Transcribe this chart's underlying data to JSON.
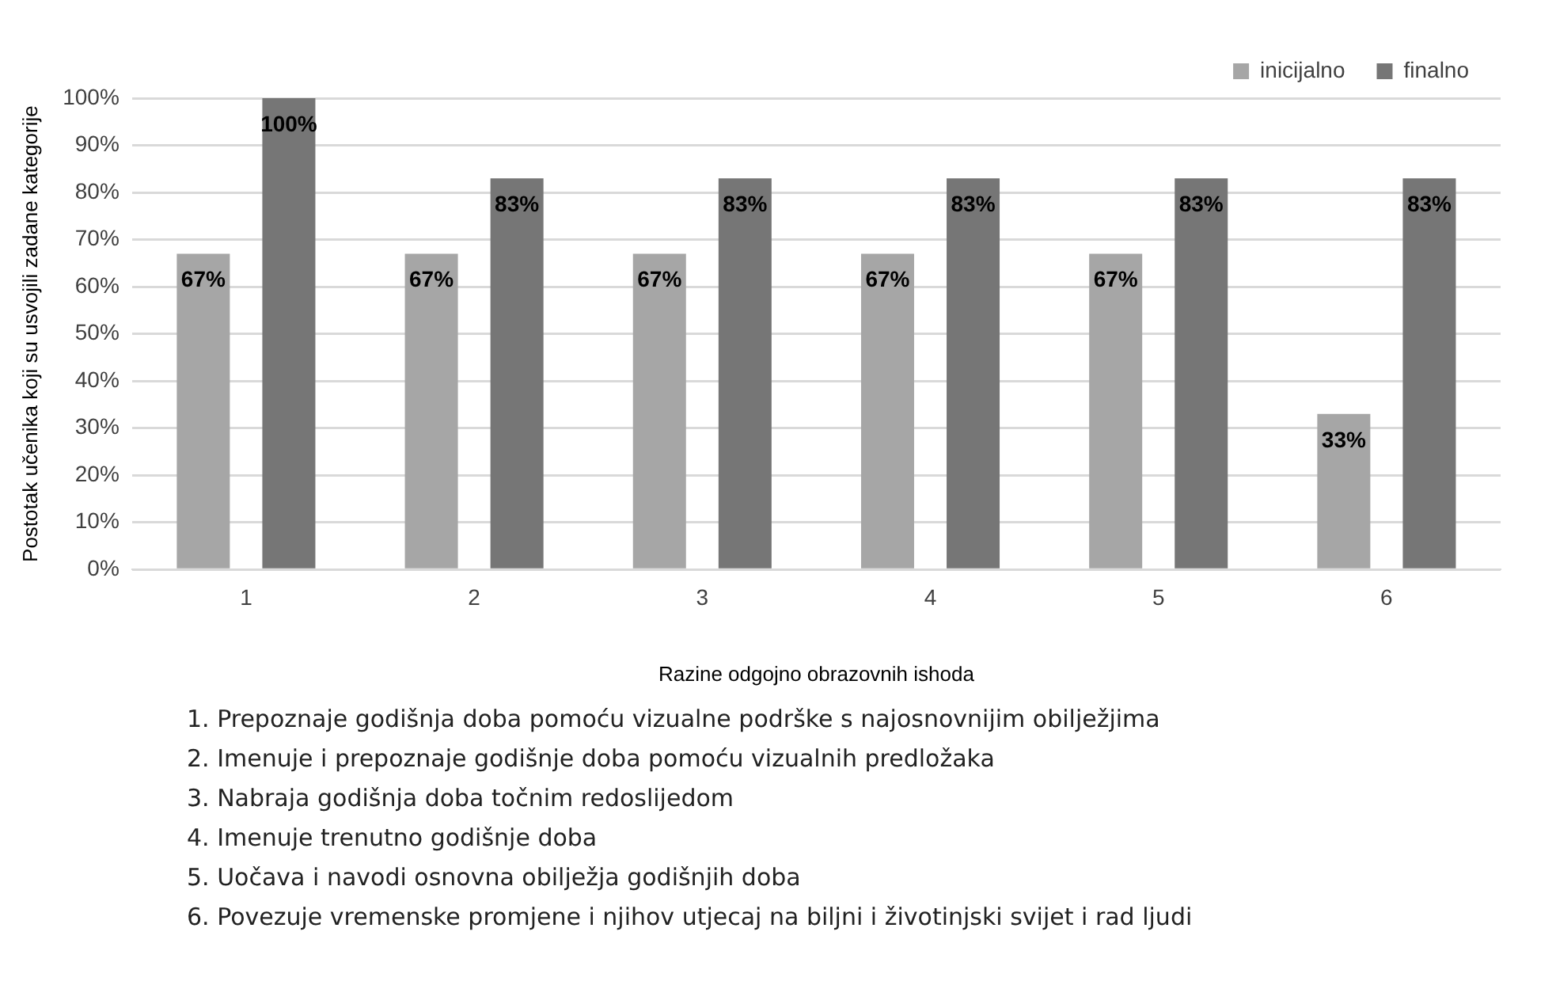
{
  "chart_data": {
    "type": "bar",
    "xlabel": "Razine odgojno obrazovnih ishoda",
    "ylabel": "Postotak učenika koji su usvojili zadane kategorije",
    "categories": [
      "1",
      "2",
      "3",
      "4",
      "5",
      "6"
    ],
    "series": [
      {
        "name": "inicijalno",
        "color": "#a6a6a6",
        "values": [
          67,
          67,
          67,
          67,
          67,
          33
        ],
        "value_labels": [
          "67%",
          "67%",
          "67%",
          "67%",
          "67%",
          "33%"
        ]
      },
      {
        "name": "finalno",
        "color": "#767676",
        "values": [
          100,
          83,
          83,
          83,
          83,
          83
        ],
        "value_labels": [
          "100%",
          "83%",
          "83%",
          "83%",
          "83%",
          "83%"
        ]
      }
    ],
    "ylim": [
      0,
      100
    ],
    "yticks": [
      {
        "value": 0,
        "label": "0%"
      },
      {
        "value": 10,
        "label": "10%"
      },
      {
        "value": 20,
        "label": "20%"
      },
      {
        "value": 30,
        "label": "30%"
      },
      {
        "value": 40,
        "label": "40%"
      },
      {
        "value": 50,
        "label": "50%"
      },
      {
        "value": 60,
        "label": "60%"
      },
      {
        "value": 70,
        "label": "70%"
      },
      {
        "value": 80,
        "label": "80%"
      },
      {
        "value": 90,
        "label": "90%"
      },
      {
        "value": 100,
        "label": "100%"
      }
    ],
    "grid": "y",
    "legend": "top right",
    "annotations": [
      "1. Prepoznaje godišnja doba pomoću vizualne podrške s najosnovnijim obilježjima",
      "2. Imenuje i prepoznaje godišnje doba pomoću vizualnih predložaka",
      "3. Nabraja godišnja doba točnim redoslijedom",
      "4. Imenuje trenutno godišnje doba",
      "5. Uočava i navodi osnovna obilježja godišnjih doba",
      "6. Povezuje vremenske promjene i njihov utjecaj na biljni i životinjski svijet i rad ljudi"
    ]
  }
}
